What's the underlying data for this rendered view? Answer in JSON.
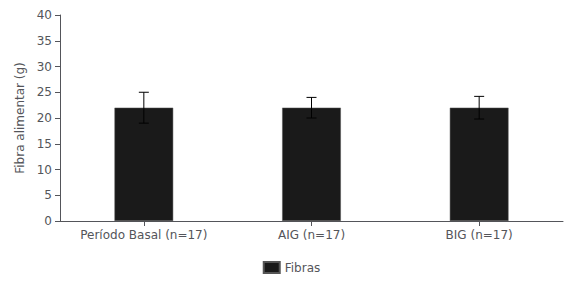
{
  "chart_data": {
    "type": "bar",
    "ylabel": "Fibra alimentar (g)",
    "categories": [
      "Período Basal (n=17)",
      "AIG (n=17)",
      "BIG (n=17)"
    ],
    "series": [
      {
        "name": "Fibras",
        "color": "#1a1a1a",
        "values": [
          22.0,
          22.0,
          22.0
        ],
        "errors": [
          3.0,
          2.0,
          2.2
        ]
      }
    ],
    "ylim": [
      0,
      40
    ],
    "yticks": [
      0,
      5,
      10,
      15,
      20,
      25,
      30,
      35,
      40
    ],
    "grid": false,
    "legend": "bottom"
  }
}
